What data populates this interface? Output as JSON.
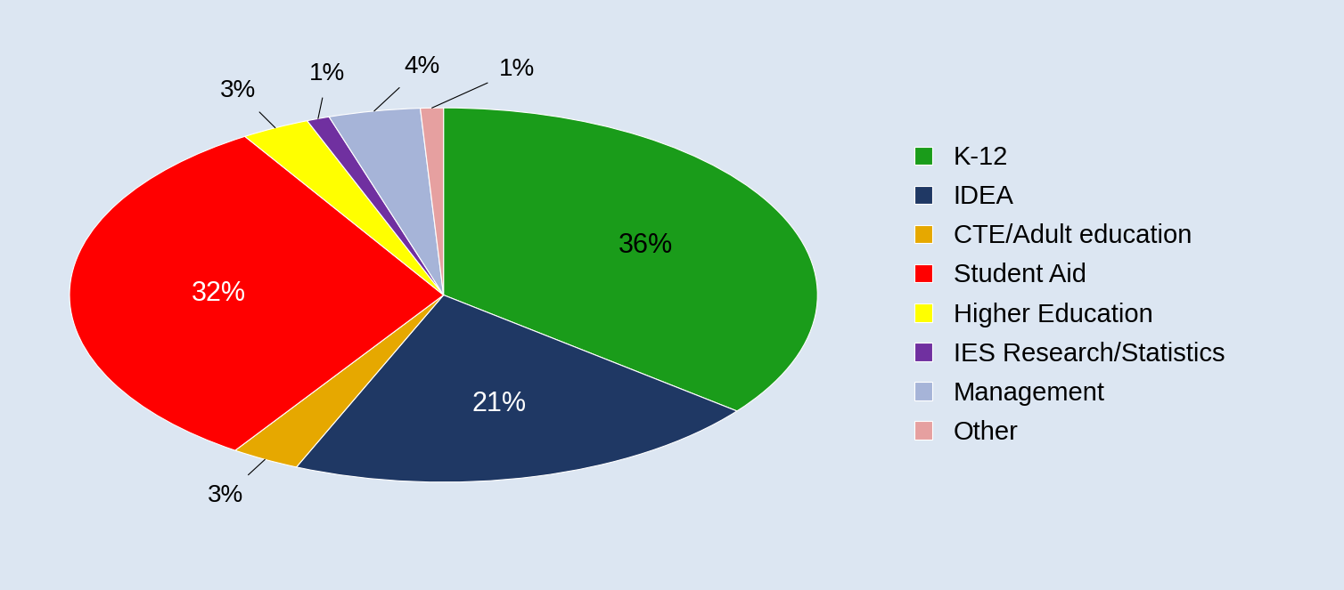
{
  "chart_data": {
    "type": "pie",
    "categories": [
      "K-12",
      "IDEA",
      "CTE/Adult education",
      "Student Aid",
      "Higher Education",
      "IES Research/Statistics",
      "Management",
      "Other"
    ],
    "values": [
      36,
      21,
      3,
      32,
      3,
      1,
      4,
      1
    ],
    "value_labels": [
      "36%",
      "21%",
      "3%",
      "32%",
      "3%",
      "1%",
      "4%",
      "1%"
    ],
    "colors": [
      "#1a9c1a",
      "#1f3864",
      "#e6a800",
      "#ff0000",
      "#ffff00",
      "#7030a0",
      "#a6b4d8",
      "#e6a0a0"
    ],
    "data_labels": true,
    "legend": "right"
  }
}
